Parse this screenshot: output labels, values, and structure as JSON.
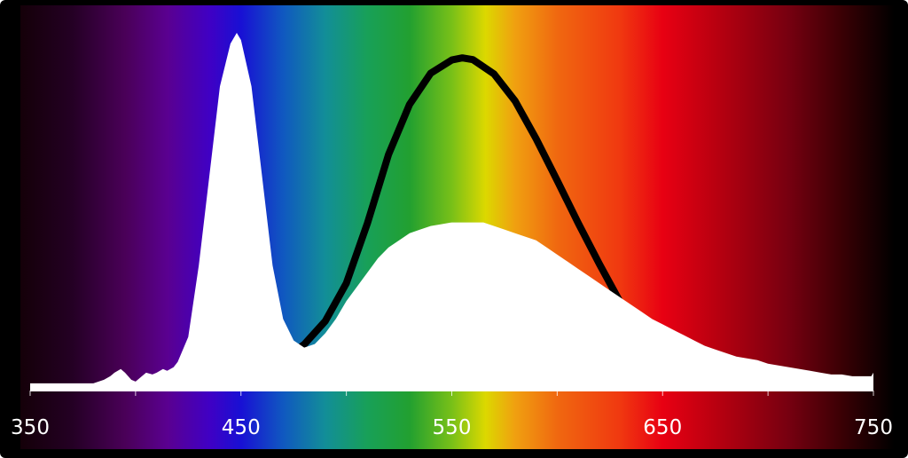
{
  "chart_data": {
    "type": "area",
    "xlim": [
      350,
      750
    ],
    "ylim": [
      0,
      1
    ],
    "grid": false,
    "x_ticks": [
      350,
      400,
      450,
      500,
      550,
      600,
      650,
      700,
      750
    ],
    "x_tick_labels": [
      "350",
      "450",
      "550",
      "650",
      "750"
    ],
    "x_tick_label_values": [
      350,
      450,
      550,
      650,
      750
    ],
    "series": [
      {
        "kind": "filled-area",
        "color": "#ffffff",
        "x": [
          350,
          355,
          360,
          365,
          370,
          375,
          380,
          385,
          388,
          390,
          393,
          395,
          398,
          400,
          403,
          405,
          408,
          410,
          413,
          415,
          418,
          420,
          425,
          430,
          435,
          440,
          445,
          448,
          450,
          455,
          460,
          465,
          470,
          475,
          480,
          485,
          490,
          495,
          500,
          505,
          510,
          515,
          520,
          525,
          530,
          535,
          540,
          545,
          550,
          555,
          560,
          565,
          570,
          575,
          580,
          585,
          590,
          595,
          600,
          605,
          610,
          615,
          620,
          625,
          630,
          635,
          640,
          645,
          650,
          655,
          660,
          665,
          670,
          675,
          680,
          685,
          690,
          695,
          700,
          705,
          710,
          715,
          720,
          725,
          730,
          735,
          740,
          745,
          749,
          750
        ],
        "y": [
          0.02,
          0.02,
          0.02,
          0.02,
          0.02,
          0.02,
          0.02,
          0.03,
          0.04,
          0.05,
          0.06,
          0.05,
          0.03,
          0.025,
          0.04,
          0.05,
          0.045,
          0.05,
          0.06,
          0.055,
          0.065,
          0.08,
          0.15,
          0.35,
          0.6,
          0.85,
          0.97,
          1.0,
          0.98,
          0.85,
          0.6,
          0.35,
          0.2,
          0.14,
          0.12,
          0.13,
          0.16,
          0.2,
          0.25,
          0.29,
          0.33,
          0.37,
          0.4,
          0.42,
          0.44,
          0.45,
          0.46,
          0.465,
          0.47,
          0.47,
          0.47,
          0.47,
          0.46,
          0.45,
          0.44,
          0.43,
          0.42,
          0.4,
          0.38,
          0.36,
          0.34,
          0.32,
          0.3,
          0.28,
          0.26,
          0.24,
          0.22,
          0.2,
          0.185,
          0.17,
          0.155,
          0.14,
          0.125,
          0.115,
          0.105,
          0.095,
          0.09,
          0.085,
          0.075,
          0.07,
          0.065,
          0.06,
          0.055,
          0.05,
          0.045,
          0.045,
          0.04,
          0.04,
          0.04,
          0.05
        ]
      },
      {
        "kind": "line",
        "color": "#000000",
        "x": [
          470,
          480,
          490,
          500,
          510,
          520,
          530,
          540,
          550,
          555,
          560,
          570,
          580,
          590,
          600,
          610,
          620,
          630,
          640
        ],
        "y": [
          0.085,
          0.129,
          0.194,
          0.3,
          0.468,
          0.66,
          0.8,
          0.887,
          0.924,
          0.93,
          0.925,
          0.885,
          0.81,
          0.704,
          0.587,
          0.468,
          0.354,
          0.246,
          0.163
        ]
      }
    ],
    "background_spectrum": [
      {
        "nm": 345,
        "color": "#140008"
      },
      {
        "nm": 370,
        "color": "#240024"
      },
      {
        "nm": 395,
        "color": "#4a0058"
      },
      {
        "nm": 415,
        "color": "#5a0090"
      },
      {
        "nm": 435,
        "color": "#4000c4"
      },
      {
        "nm": 450,
        "color": "#1810d4"
      },
      {
        "nm": 470,
        "color": "#1058c0"
      },
      {
        "nm": 490,
        "color": "#128e98"
      },
      {
        "nm": 510,
        "color": "#18a058"
      },
      {
        "nm": 530,
        "color": "#22a030"
      },
      {
        "nm": 550,
        "color": "#78c018"
      },
      {
        "nm": 566,
        "color": "#dcd800"
      },
      {
        "nm": 580,
        "color": "#f0a010"
      },
      {
        "nm": 600,
        "color": "#f06810"
      },
      {
        "nm": 630,
        "color": "#f03810"
      },
      {
        "nm": 650,
        "color": "#e80012"
      },
      {
        "nm": 680,
        "color": "#b00010"
      },
      {
        "nm": 710,
        "color": "#760010"
      },
      {
        "nm": 735,
        "color": "#3a0004"
      },
      {
        "nm": 760,
        "color": "#000000"
      }
    ]
  }
}
